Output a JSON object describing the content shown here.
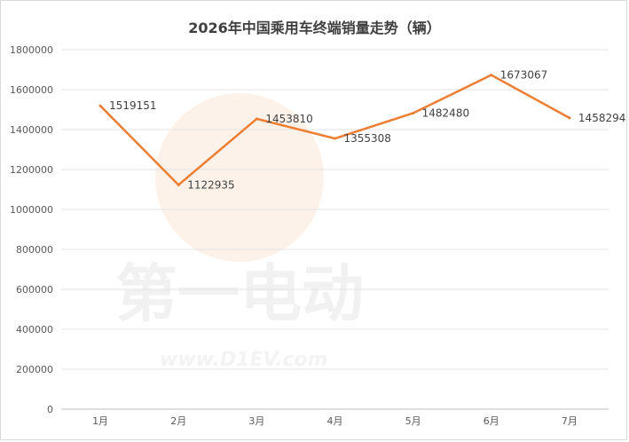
{
  "chart_data": {
    "type": "line",
    "title": "2026年中国乘用车终端销量走势（辆）",
    "categories": [
      "1月",
      "2月",
      "3月",
      "4月",
      "5月",
      "6月",
      "7月"
    ],
    "series": [
      {
        "values": [
          1519151,
          1122935,
          1453810,
          1355308,
          1482480,
          1673067,
          1458294
        ]
      }
    ],
    "ylim": [
      0,
      1800000
    ],
    "yticks": [
      0,
      200000,
      400000,
      600000,
      800000,
      1000000,
      1200000,
      1400000,
      1600000,
      1800000
    ],
    "grid": true,
    "line_color": "#ED7D31",
    "data_labels": true
  },
  "watermark": {
    "text_cn": "第一电动",
    "url": "www.D1EV.com"
  }
}
